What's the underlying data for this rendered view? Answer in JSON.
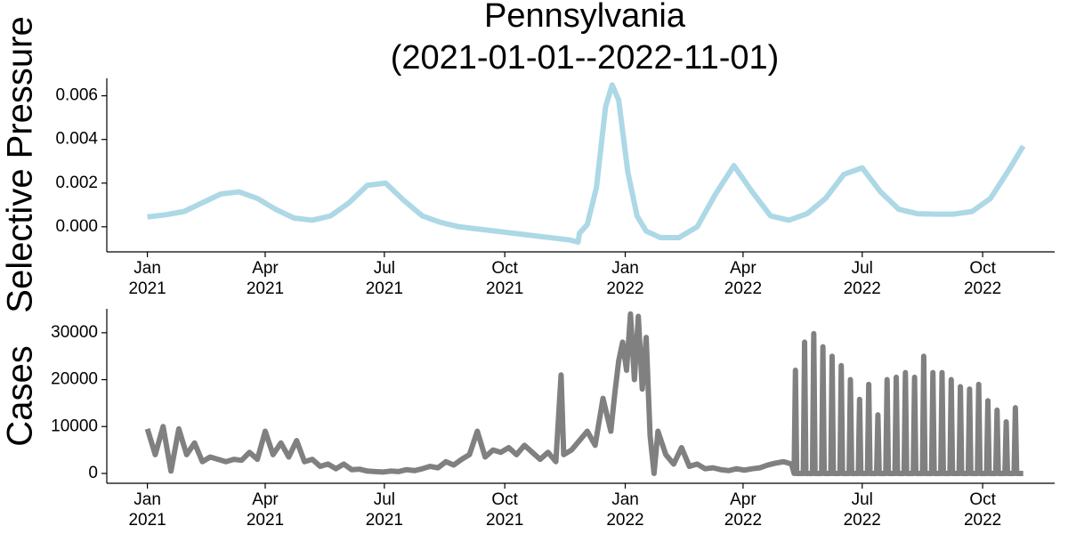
{
  "chart_data": [
    {
      "type": "line",
      "title": "Pennsylvania",
      "subtitle": "(2021-01-01--2022-11-01)",
      "y_label": "Selective Pressure",
      "color": "#add8e6",
      "xlim": [
        "2020-12-01",
        "2022-11-25"
      ],
      "xticks": [
        {
          "value": "2021-01-01",
          "label": "Jan\n2021"
        },
        {
          "value": "2021-04-01",
          "label": "Apr\n2021"
        },
        {
          "value": "2021-07-01",
          "label": "Jul\n2021"
        },
        {
          "value": "2021-10-01",
          "label": "Oct\n2021"
        },
        {
          "value": "2022-01-01",
          "label": "Jan\n2022"
        },
        {
          "value": "2022-04-01",
          "label": "Apr\n2022"
        },
        {
          "value": "2022-07-01",
          "label": "Jul\n2022"
        },
        {
          "value": "2022-10-01",
          "label": "Oct\n2022"
        }
      ],
      "ylim": [
        -0.00115,
        0.0068
      ],
      "yticks": [
        {
          "value": 0,
          "label": "0.000"
        },
        {
          "value": 0.002,
          "label": "0.002"
        },
        {
          "value": 0.004,
          "label": "0.004"
        },
        {
          "value": 0.006,
          "label": "0.006"
        }
      ],
      "x": [
        "2021-01-01",
        "2021-01-15",
        "2021-01-29",
        "2021-02-12",
        "2021-02-26",
        "2021-03-12",
        "2021-03-26",
        "2021-04-09",
        "2021-04-23",
        "2021-05-07",
        "2021-05-21",
        "2021-06-04",
        "2021-06-18",
        "2021-07-02",
        "2021-07-16",
        "2021-07-30",
        "2021-08-13",
        "2021-08-27",
        "2021-09-10",
        "2021-09-24",
        "2021-10-08",
        "2021-10-22",
        "2021-11-05",
        "2021-11-19",
        "2021-11-26",
        "2021-11-27",
        "2021-12-03",
        "2021-12-10",
        "2021-12-17",
        "2021-12-22",
        "2021-12-27",
        "2022-01-03",
        "2022-01-10",
        "2022-01-17",
        "2022-01-28",
        "2022-02-11",
        "2022-02-25",
        "2022-03-11",
        "2022-03-25",
        "2022-04-08",
        "2022-04-22",
        "2022-05-06",
        "2022-05-20",
        "2022-06-03",
        "2022-06-17",
        "2022-07-01",
        "2022-07-15",
        "2022-07-29",
        "2022-08-12",
        "2022-08-26",
        "2022-09-09",
        "2022-09-23",
        "2022-10-07",
        "2022-10-21",
        "2022-11-01"
      ],
      "values": [
        0.00045,
        0.00055,
        0.0007,
        0.0011,
        0.0015,
        0.0016,
        0.0013,
        0.0008,
        0.0004,
        0.0003,
        0.0005,
        0.0011,
        0.0019,
        0.002,
        0.0012,
        0.0005,
        0.0002,
        0,
        -0.0001,
        -0.0002,
        -0.0003,
        -0.0004,
        -0.0005,
        -0.0006,
        -0.0007,
        -0.0003,
        0.0001,
        0.0018,
        0.0055,
        0.0065,
        0.0058,
        0.0025,
        0.0005,
        -0.0002,
        -0.0005,
        -0.0005,
        0,
        0.0015,
        0.0028,
        0.0016,
        0.0005,
        0.0003,
        0.0006,
        0.0013,
        0.0024,
        0.0027,
        0.0016,
        0.0008,
        0.0006,
        0.00058,
        0.00058,
        0.0007,
        0.0013,
        0.0026,
        0.0037
      ]
    },
    {
      "type": "line",
      "y_label": "Cases",
      "color": "#808080",
      "xlim": [
        "2020-12-01",
        "2022-11-25"
      ],
      "xticks": [
        {
          "value": "2021-01-01",
          "label": "Jan\n2021"
        },
        {
          "value": "2021-04-01",
          "label": "Apr\n2021"
        },
        {
          "value": "2021-07-01",
          "label": "Jul\n2021"
        },
        {
          "value": "2021-10-01",
          "label": "Oct\n2021"
        },
        {
          "value": "2022-01-01",
          "label": "Jan\n2022"
        },
        {
          "value": "2022-04-01",
          "label": "Apr\n2022"
        },
        {
          "value": "2022-07-01",
          "label": "Jul\n2022"
        },
        {
          "value": "2022-10-01",
          "label": "Oct\n2022"
        }
      ],
      "ylim": [
        -2100,
        35100
      ],
      "yticks": [
        0,
        10000,
        20000,
        30000
      ],
      "x": [
        "2021-01-01",
        "2021-01-07",
        "2021-01-13",
        "2021-01-19",
        "2021-01-25",
        "2021-01-31",
        "2021-02-06",
        "2021-02-12",
        "2021-02-18",
        "2021-02-24",
        "2021-03-02",
        "2021-03-08",
        "2021-03-14",
        "2021-03-20",
        "2021-03-26",
        "2021-04-01",
        "2021-04-07",
        "2021-04-13",
        "2021-04-19",
        "2021-04-25",
        "2021-05-01",
        "2021-05-07",
        "2021-05-13",
        "2021-05-19",
        "2021-05-25",
        "2021-05-31",
        "2021-06-06",
        "2021-06-12",
        "2021-06-18",
        "2021-06-24",
        "2021-06-30",
        "2021-07-06",
        "2021-07-12",
        "2021-07-18",
        "2021-07-24",
        "2021-07-30",
        "2021-08-05",
        "2021-08-11",
        "2021-08-17",
        "2021-08-23",
        "2021-08-29",
        "2021-09-04",
        "2021-09-10",
        "2021-09-16",
        "2021-09-22",
        "2021-09-28",
        "2021-10-04",
        "2021-10-10",
        "2021-10-16",
        "2021-10-22",
        "2021-10-28",
        "2021-11-03",
        "2021-11-09",
        "2021-11-13",
        "2021-11-15",
        "2021-11-21",
        "2021-11-27",
        "2021-12-03",
        "2021-12-09",
        "2021-12-15",
        "2021-12-21",
        "2021-12-24",
        "2021-12-27",
        "2021-12-30",
        "2022-01-02",
        "2022-01-05",
        "2022-01-08",
        "2022-01-11",
        "2022-01-14",
        "2022-01-17",
        "2022-01-20",
        "2022-01-23",
        "2022-01-26",
        "2022-02-01",
        "2022-02-07",
        "2022-02-13",
        "2022-02-19",
        "2022-02-25",
        "2022-03-03",
        "2022-03-09",
        "2022-03-15",
        "2022-03-21",
        "2022-03-27",
        "2022-04-02",
        "2022-04-08",
        "2022-04-14",
        "2022-04-20",
        "2022-04-26",
        "2022-05-02",
        "2022-05-08",
        "2022-05-10",
        "2022-05-11",
        "2022-05-12",
        "2022-05-17",
        "2022-05-18",
        "2022-05-19",
        "2022-05-24",
        "2022-05-25",
        "2022-05-26",
        "2022-05-31",
        "2022-06-01",
        "2022-06-02",
        "2022-06-07",
        "2022-06-08",
        "2022-06-09",
        "2022-06-14",
        "2022-06-15",
        "2022-06-16",
        "2022-06-21",
        "2022-06-22",
        "2022-06-23",
        "2022-06-28",
        "2022-06-29",
        "2022-06-30",
        "2022-07-05",
        "2022-07-06",
        "2022-07-07",
        "2022-07-12",
        "2022-07-13",
        "2022-07-14",
        "2022-07-19",
        "2022-07-20",
        "2022-07-21",
        "2022-07-26",
        "2022-07-27",
        "2022-07-28",
        "2022-08-02",
        "2022-08-03",
        "2022-08-04",
        "2022-08-09",
        "2022-08-10",
        "2022-08-11",
        "2022-08-16",
        "2022-08-17",
        "2022-08-18",
        "2022-08-23",
        "2022-08-24",
        "2022-08-25",
        "2022-08-30",
        "2022-08-31",
        "2022-09-01",
        "2022-09-06",
        "2022-09-07",
        "2022-09-08",
        "2022-09-13",
        "2022-09-14",
        "2022-09-15",
        "2022-09-20",
        "2022-09-21",
        "2022-09-22",
        "2022-09-27",
        "2022-09-28",
        "2022-09-29",
        "2022-10-04",
        "2022-10-05",
        "2022-10-06",
        "2022-10-11",
        "2022-10-12",
        "2022-10-13",
        "2022-10-18",
        "2022-10-19",
        "2022-10-20",
        "2022-10-25",
        "2022-10-26",
        "2022-10-27",
        "2022-11-01"
      ],
      "values": [
        9500,
        4000,
        10000,
        500,
        9500,
        4000,
        6500,
        2500,
        3500,
        3000,
        2500,
        3000,
        2800,
        4500,
        3000,
        9000,
        4000,
        6500,
        3500,
        7000,
        2500,
        3000,
        1500,
        2000,
        1000,
        2000,
        800,
        900,
        500,
        400,
        300,
        500,
        400,
        800,
        600,
        1000,
        1500,
        1200,
        2500,
        1800,
        3000,
        4000,
        9000,
        3500,
        5000,
        4500,
        5500,
        4000,
        6000,
        4500,
        3000,
        4500,
        2500,
        21000,
        4000,
        5000,
        7000,
        9000,
        6000,
        16000,
        9000,
        17000,
        24000,
        28000,
        22000,
        34000,
        20000,
        33500,
        18000,
        29000,
        8000,
        0,
        9000,
        4000,
        2000,
        5500,
        1500,
        2000,
        1000,
        1200,
        800,
        600,
        1000,
        700,
        1000,
        1200,
        1800,
        2200,
        2500,
        2000,
        0,
        22000,
        0,
        0,
        28000,
        0,
        0,
        29800,
        0,
        0,
        27000,
        0,
        0,
        25000,
        0,
        0,
        23000,
        0,
        0,
        20000,
        0,
        0,
        15800,
        0,
        0,
        19000,
        0,
        0,
        12500,
        0,
        0,
        20000,
        0,
        0,
        20500,
        0,
        0,
        21500,
        0,
        0,
        20500,
        0,
        0,
        25000,
        0,
        0,
        21500,
        0,
        0,
        21500,
        0,
        0,
        20000,
        0,
        0,
        18500,
        0,
        0,
        18000,
        0,
        0,
        19000,
        0,
        0,
        15500,
        0,
        0,
        13500,
        0,
        0,
        11000,
        0,
        0,
        14000,
        0,
        0
      ]
    }
  ]
}
